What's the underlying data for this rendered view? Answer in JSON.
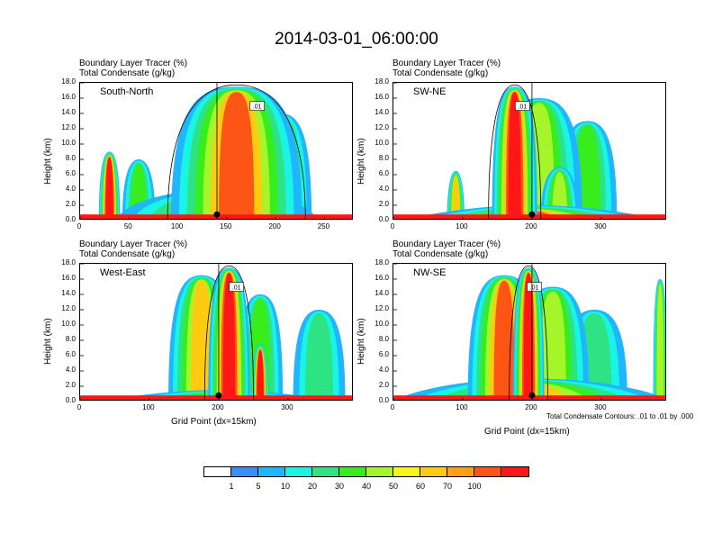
{
  "figure": {
    "title": "2014-03-01_06:00:00",
    "header_line1": "Boundary Layer Tracer    (%)",
    "header_line2": "Total Condensate   (g/kg)",
    "ylabel": "Height (km)",
    "xlabel": "Grid Point (dx=15km)",
    "contour_note": "Total Condensate Contours: .01 to .01 by .000",
    "y_ticks": [
      "0.0",
      "2.0",
      "4.0",
      "6.0",
      "8.0",
      "10.0",
      "12.0",
      "14.0",
      "16.0",
      "18.0"
    ],
    "contour_label": ".01"
  },
  "legend": {
    "levels": [
      "1",
      "5",
      "10",
      "20",
      "30",
      "40",
      "50",
      "60",
      "70",
      "100"
    ],
    "colors": [
      "#ffffff",
      "#3a8ff5",
      "#1fb6ff",
      "#19f4e4",
      "#2de383",
      "#37ed1c",
      "#a6f52a",
      "#f7f716",
      "#ffcb10",
      "#ffa012",
      "#fd5516",
      "#ff1717"
    ]
  },
  "chart_data": [
    {
      "type": "heatmap",
      "panel": "South-North",
      "xlim": [
        0,
        280
      ],
      "ylim": [
        0,
        18
      ],
      "x_ticks": [
        0,
        50,
        100,
        150,
        200,
        250
      ],
      "point_marker_x": 140,
      "features": [
        {
          "x": 30,
          "ytop": 9.0,
          "width": 18,
          "level": 100
        },
        {
          "x": 60,
          "ytop": 8.0,
          "width": 30,
          "level": 20
        },
        {
          "x": 160,
          "ytop": 17.5,
          "width": 130,
          "level": 70
        },
        {
          "x": 205,
          "ytop": 14.0,
          "width": 60,
          "level": 30
        },
        {
          "x": 140,
          "ytop": 4.0,
          "width": 200,
          "level": 30
        }
      ]
    },
    {
      "type": "heatmap",
      "panel": "SW-NE",
      "xlim": [
        0,
        395
      ],
      "ylim": [
        0,
        18
      ],
      "x_ticks": [
        0,
        100,
        200,
        300
      ],
      "point_marker_x": 200,
      "features": [
        {
          "x": 90,
          "ytop": 6.5,
          "width": 20,
          "level": 60
        },
        {
          "x": 175,
          "ytop": 17.5,
          "width": 60,
          "level": 100
        },
        {
          "x": 210,
          "ytop": 16.0,
          "width": 120,
          "level": 30
        },
        {
          "x": 280,
          "ytop": 13.0,
          "width": 80,
          "level": 20
        },
        {
          "x": 240,
          "ytop": 7.0,
          "width": 50,
          "level": 30
        },
        {
          "x": 200,
          "ytop": 2.0,
          "width": 390,
          "level": 70
        }
      ]
    },
    {
      "type": "heatmap",
      "panel": "West-East",
      "xlim": [
        0,
        395
      ],
      "ylim": [
        0,
        18
      ],
      "x_ticks": [
        0,
        100,
        200,
        300
      ],
      "point_marker_x": 200,
      "features": [
        {
          "x": 215,
          "ytop": 17.5,
          "width": 55,
          "level": 100
        },
        {
          "x": 175,
          "ytop": 16.5,
          "width": 90,
          "level": 60
        },
        {
          "x": 260,
          "ytop": 14.0,
          "width": 60,
          "level": 20
        },
        {
          "x": 345,
          "ytop": 12.0,
          "width": 70,
          "level": 10
        },
        {
          "x": 260,
          "ytop": 7.5,
          "width": 20,
          "level": 100
        },
        {
          "x": 200,
          "ytop": 1.5,
          "width": 390,
          "level": 60
        }
      ]
    },
    {
      "type": "heatmap",
      "panel": "NW-SE",
      "xlim": [
        0,
        395
      ],
      "ylim": [
        0,
        18
      ],
      "x_ticks": [
        0,
        100,
        200,
        300
      ],
      "point_marker_x": 200,
      "features": [
        {
          "x": 195,
          "ytop": 17.5,
          "width": 40,
          "level": 100
        },
        {
          "x": 160,
          "ytop": 16.5,
          "width": 100,
          "level": 70
        },
        {
          "x": 230,
          "ytop": 15.0,
          "width": 100,
          "level": 30
        },
        {
          "x": 290,
          "ytop": 12.0,
          "width": 90,
          "level": 10
        },
        {
          "x": 385,
          "ytop": 16.0,
          "width": 15,
          "level": 40
        },
        {
          "x": 200,
          "ytop": 3.0,
          "width": 390,
          "level": 60
        }
      ]
    }
  ]
}
